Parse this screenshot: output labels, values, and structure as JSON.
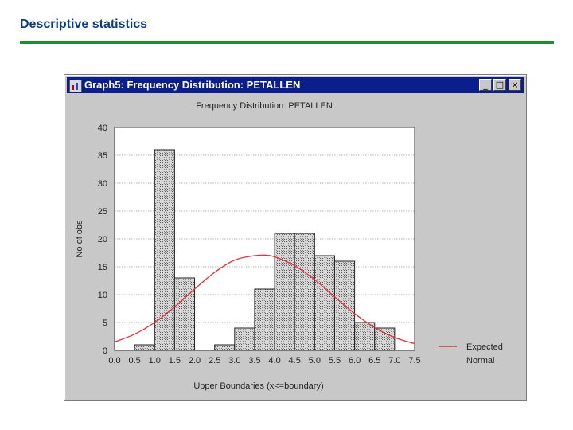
{
  "slide": {
    "title": "Descriptive statistics",
    "accent_color": "#1f8f2f",
    "title_color": "#0b3a8c"
  },
  "window": {
    "title": "Graph5: Frequency Distribution: PETALLEN",
    "icon": "app-chart-icon",
    "buttons": {
      "minimize": "_",
      "maximize": "□",
      "close": "×"
    },
    "titlebar_color": "#0a1f8c"
  },
  "chart_data": {
    "type": "bar",
    "title": "Frequency Distribution: PETALLEN",
    "xlabel": "Upper Boundaries (x<=boundary)",
    "ylabel": "No of obs",
    "ylim": [
      0,
      40
    ],
    "xlim": [
      0,
      7.5
    ],
    "y_ticks": [
      "0",
      "5",
      "10",
      "15",
      "20",
      "25",
      "30",
      "35",
      "40"
    ],
    "x_ticks": [
      "0.0",
      "0.5",
      "1.0",
      "1.5",
      "2.0",
      "2.5",
      "3.0",
      "3.5",
      "4.0",
      "4.5",
      "5.0",
      "5.5",
      "6.0",
      "6.5",
      "7.0",
      "7.5"
    ],
    "grid": true,
    "bins": [
      {
        "upper": 0.5,
        "count": 0
      },
      {
        "upper": 1.0,
        "count": 1
      },
      {
        "upper": 1.5,
        "count": 36
      },
      {
        "upper": 2.0,
        "count": 13
      },
      {
        "upper": 2.5,
        "count": 0
      },
      {
        "upper": 3.0,
        "count": 1
      },
      {
        "upper": 3.5,
        "count": 4
      },
      {
        "upper": 4.0,
        "count": 11
      },
      {
        "upper": 4.5,
        "count": 21
      },
      {
        "upper": 5.0,
        "count": 21
      },
      {
        "upper": 5.5,
        "count": 17
      },
      {
        "upper": 6.0,
        "count": 16
      },
      {
        "upper": 6.5,
        "count": 5
      },
      {
        "upper": 7.0,
        "count": 4
      },
      {
        "upper": 7.5,
        "count": 0
      }
    ],
    "expected_normal": {
      "x": [
        0.0,
        0.5,
        1.0,
        1.5,
        2.0,
        2.5,
        3.0,
        3.5,
        3.75,
        4.0,
        4.5,
        5.0,
        5.5,
        6.0,
        6.5,
        7.0,
        7.5
      ],
      "y": [
        1.5,
        2.9,
        5.0,
        7.8,
        11.0,
        14.0,
        16.2,
        17.0,
        17.1,
        16.8,
        15.2,
        12.7,
        9.6,
        6.6,
        4.1,
        2.3,
        1.2
      ]
    },
    "legend": {
      "label_line1": "Expected",
      "label_line2": "Normal",
      "position": "right"
    },
    "colors": {
      "bar_fill": "#bdbdbd",
      "bar_stroke": "#222222",
      "curve": "#e0303a",
      "plot_bg": "#ffffff",
      "grid": "#9a9a9a"
    }
  }
}
